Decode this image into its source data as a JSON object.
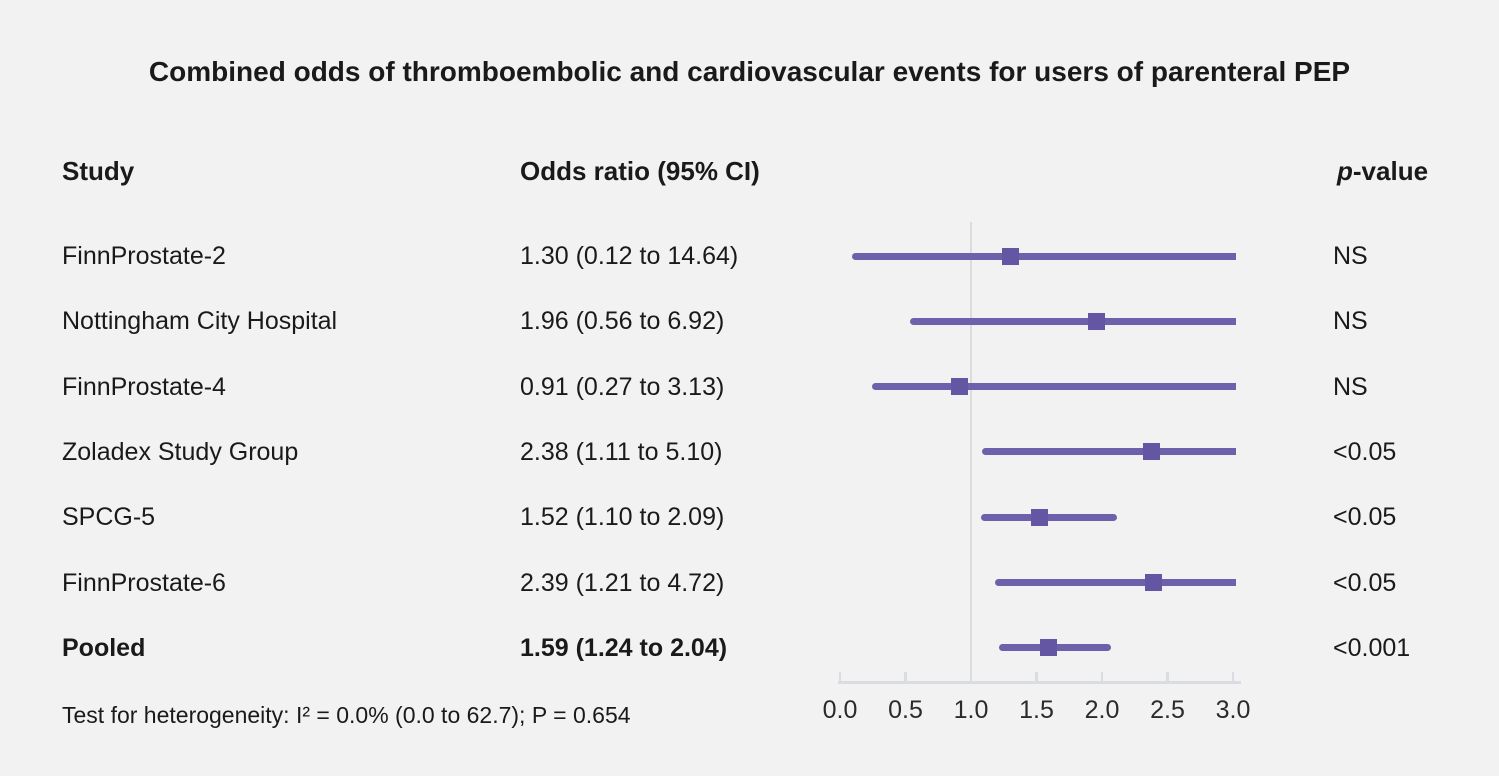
{
  "title": "Combined odds of thromboembolic and cardiovascular events for users of parenteral PEP",
  "columns": {
    "study": "Study",
    "odds_ratio": "Odds ratio (95% CI)",
    "p_value_prefix": "p",
    "p_value_suffix": "-value"
  },
  "footnote": "Test for heterogeneity: I² = 0.0% (0.0 to 62.7); P = 0.654",
  "colors": {
    "background": "#f2f2f2",
    "text": "#1a1a1a",
    "ci_bar": "#6e61ab",
    "or_marker": "#6456a2",
    "axis_line": "#d9dde2",
    "tick_label": "#2b2b2b"
  },
  "chart_data": {
    "type": "forest",
    "title": "Combined odds of thromboembolic and cardiovascular events for users of parenteral PEP",
    "axis": {
      "min": 0.0,
      "max": 3.0,
      "ticks": [
        "0.0",
        "0.5",
        "1.0",
        "1.5",
        "2.0",
        "2.5",
        "3.0"
      ],
      "reference_line": 1.0
    },
    "rows": [
      {
        "study": "FinnProstate-2",
        "or": 1.3,
        "ci_low": 0.12,
        "ci_high": 14.64,
        "or_label": "1.30 (0.12 to 14.64)",
        "p": "NS",
        "bold": false
      },
      {
        "study": "Nottingham City Hospital",
        "or": 1.96,
        "ci_low": 0.56,
        "ci_high": 6.92,
        "or_label": "1.96 (0.56 to 6.92)",
        "p": "NS",
        "bold": false
      },
      {
        "study": "FinnProstate-4",
        "or": 0.91,
        "ci_low": 0.27,
        "ci_high": 3.13,
        "or_label": "0.91 (0.27 to 3.13)",
        "p": "NS",
        "bold": false
      },
      {
        "study": "Zoladex Study Group",
        "or": 2.38,
        "ci_low": 1.11,
        "ci_high": 5.1,
        "or_label": "2.38 (1.11 to 5.10)",
        "p": "<0.05",
        "bold": false
      },
      {
        "study": "SPCG-5",
        "or": 1.52,
        "ci_low": 1.1,
        "ci_high": 2.09,
        "or_label": "1.52 (1.10 to 2.09)",
        "p": "<0.05",
        "bold": false
      },
      {
        "study": "FinnProstate-6",
        "or": 2.39,
        "ci_low": 1.21,
        "ci_high": 4.72,
        "or_label": "2.39 (1.21 to 4.72)",
        "p": "<0.05",
        "bold": false
      },
      {
        "study": "Pooled",
        "or": 1.59,
        "ci_low": 1.24,
        "ci_high": 2.04,
        "or_label": "1.59 (1.24 to 2.04)",
        "p": "<0.001",
        "bold": true
      }
    ]
  }
}
